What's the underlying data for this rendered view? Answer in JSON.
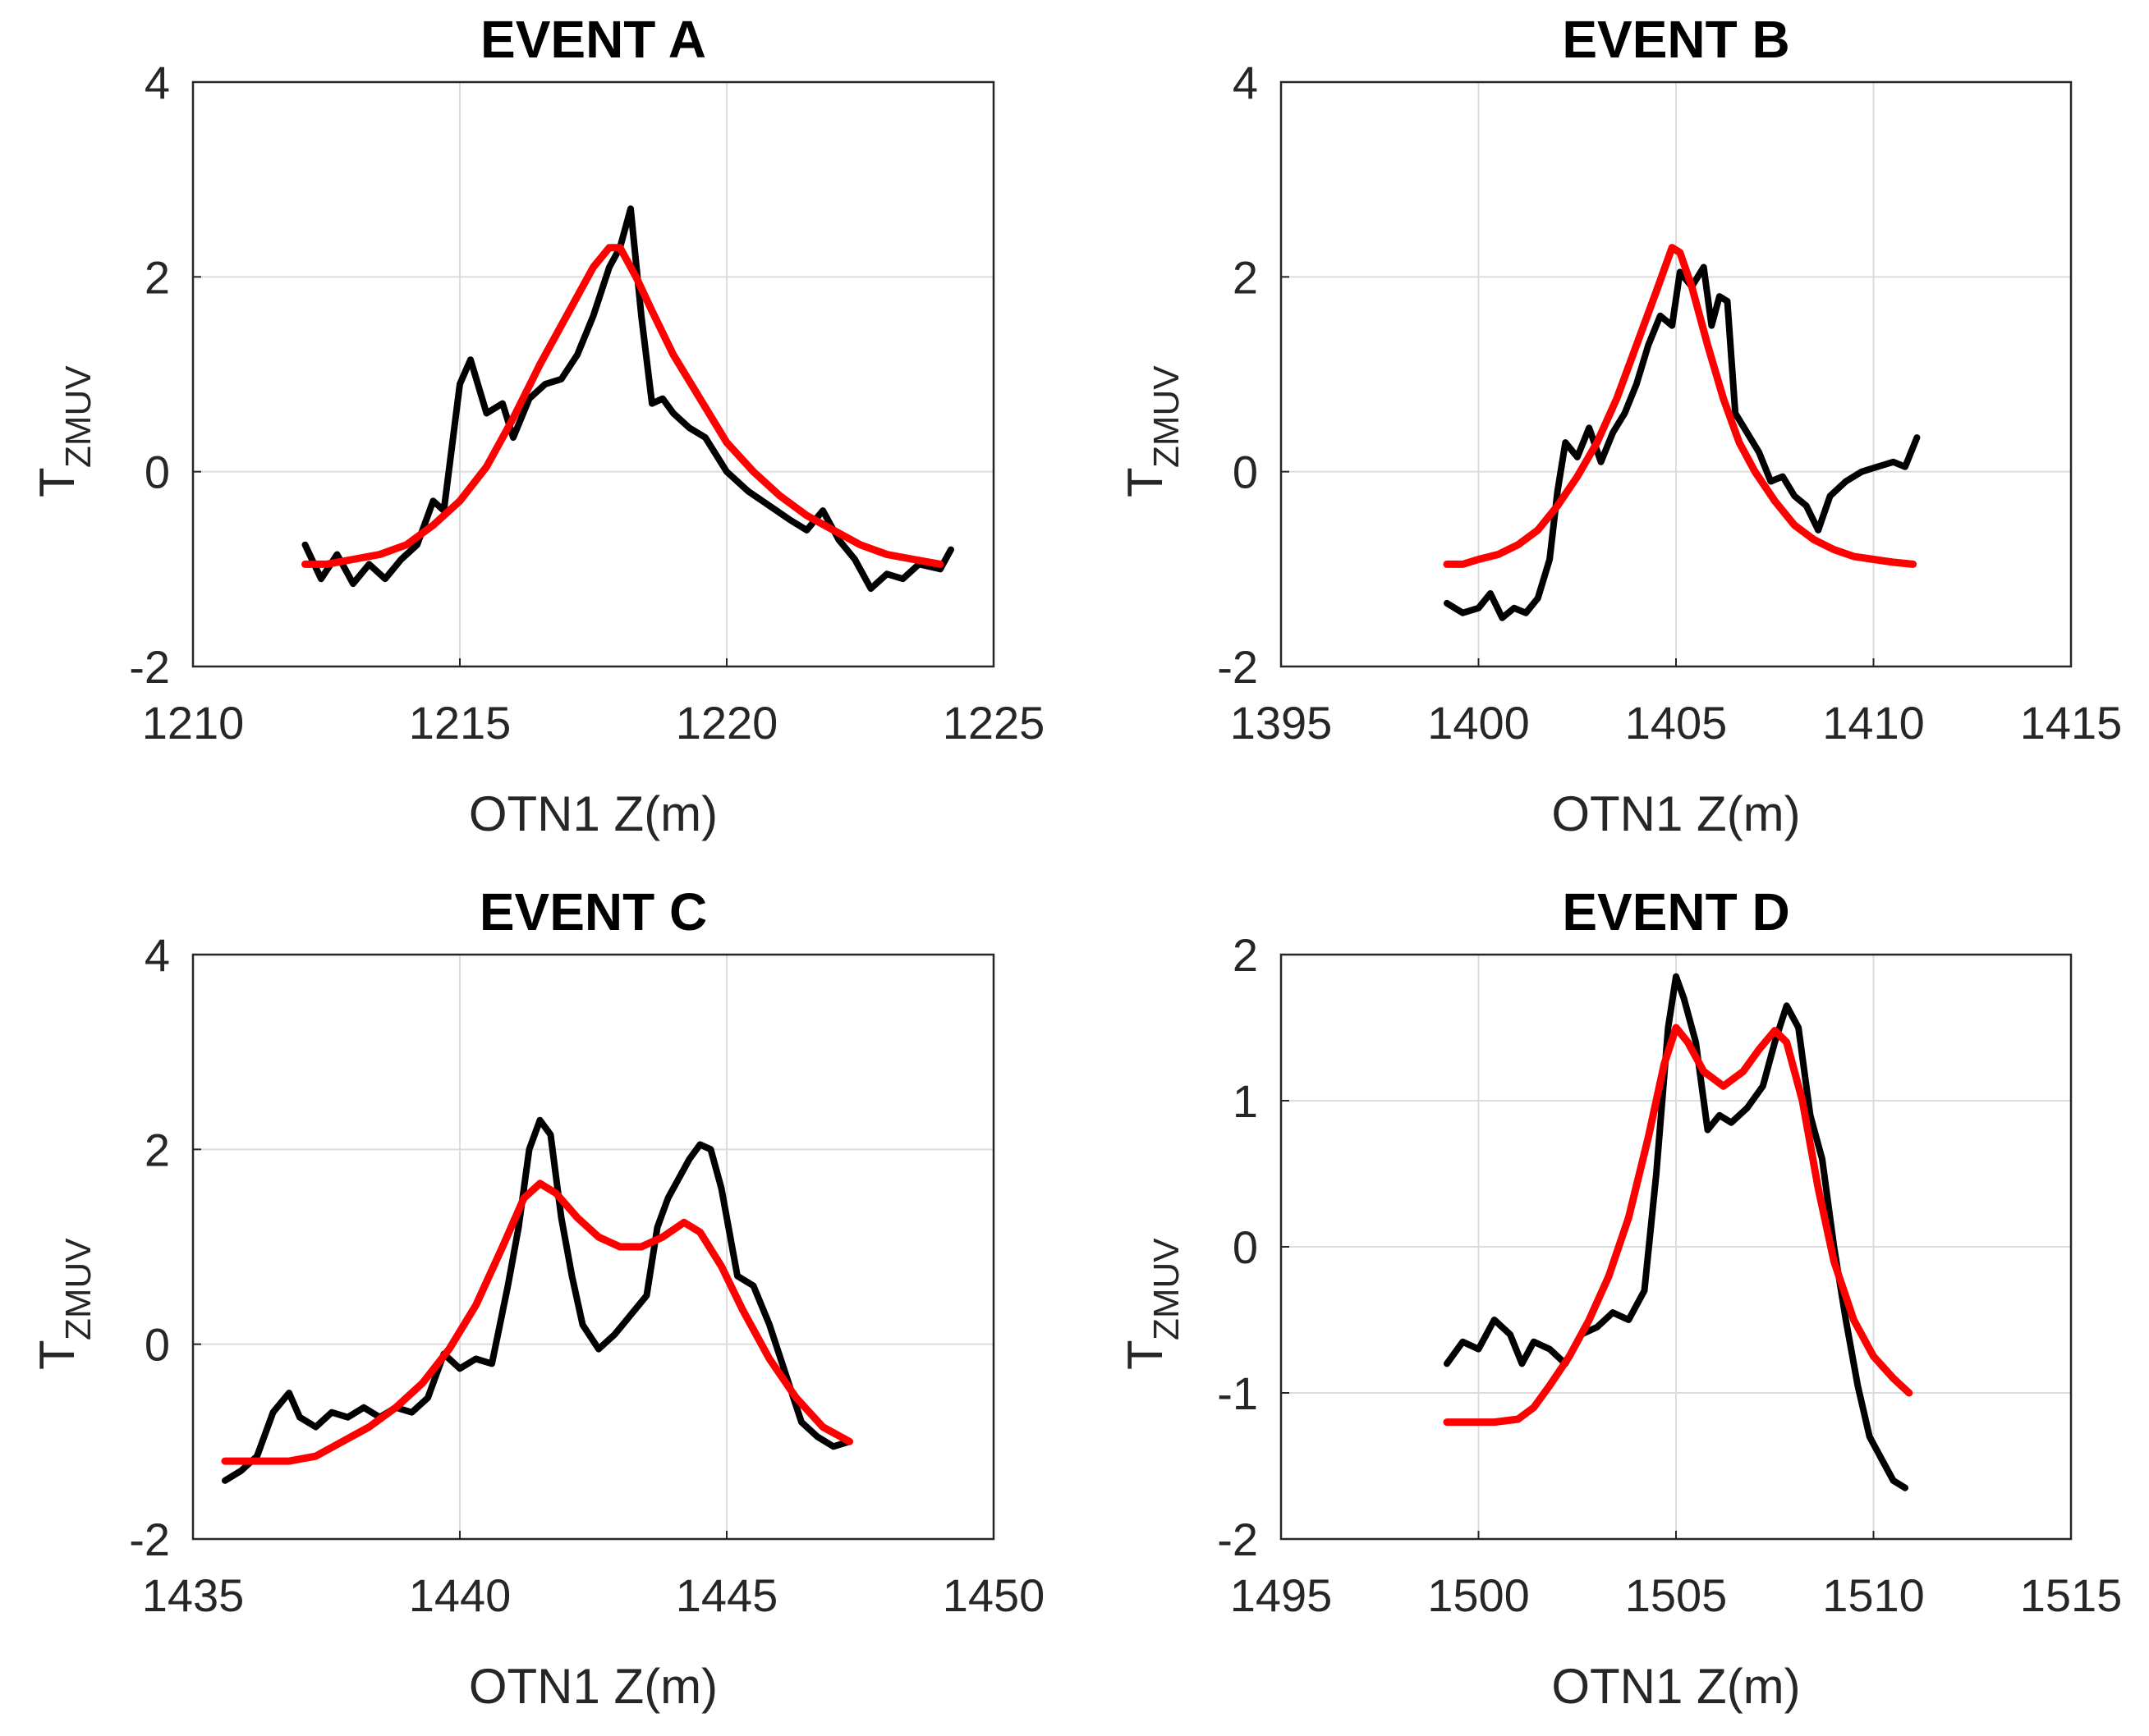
{
  "figure": {
    "ylabel_main": "T",
    "ylabel_sub": "ZMUV",
    "colors": {
      "observed": "#000000",
      "fit": "#ff0000",
      "grid": "#dcdcdc",
      "axis": "#262626"
    }
  },
  "chart_data": [
    {
      "type": "line",
      "title": "EVENT A",
      "xlabel": "OTN1 Z(m)",
      "ylabel": "T ZMUV",
      "xlim": [
        1210,
        1225
      ],
      "ylim": [
        -2,
        4
      ],
      "xticks": [
        "1210",
        "1215",
        "1220",
        "1225"
      ],
      "yticks": [
        "-2",
        "0",
        "2",
        "4"
      ],
      "grid": true,
      "series": [
        {
          "color": "#000000",
          "x": [
            1212.1,
            1212.4,
            1212.7,
            1213.0,
            1213.3,
            1213.6,
            1213.9,
            1214.2,
            1214.5,
            1214.7,
            1215.0,
            1215.2,
            1215.5,
            1215.8,
            1216.0,
            1216.3,
            1216.6,
            1216.9,
            1217.2,
            1217.5,
            1217.8,
            1218.0,
            1218.2,
            1218.4,
            1218.6,
            1218.8,
            1219.0,
            1219.3,
            1219.6,
            1220.0,
            1220.4,
            1220.8,
            1221.2,
            1221.5,
            1221.8,
            1222.1,
            1222.4,
            1222.7,
            1223.0,
            1223.3,
            1223.6,
            1224.0,
            1224.2
          ],
          "y": [
            -0.75,
            -1.1,
            -0.85,
            -1.15,
            -0.95,
            -1.1,
            -0.9,
            -0.75,
            -0.3,
            -0.4,
            0.9,
            1.15,
            0.6,
            0.7,
            0.35,
            0.75,
            0.9,
            0.95,
            1.2,
            1.6,
            2.1,
            2.3,
            2.7,
            1.6,
            0.7,
            0.75,
            0.6,
            0.45,
            0.35,
            0.0,
            -0.2,
            -0.35,
            -0.5,
            -0.6,
            -0.4,
            -0.7,
            -0.9,
            -1.2,
            -1.05,
            -1.1,
            -0.95,
            -1.0,
            -0.8
          ]
        },
        {
          "color": "#ff0000",
          "x": [
            1212.1,
            1212.5,
            1213.0,
            1213.5,
            1214.0,
            1214.5,
            1215.0,
            1215.5,
            1216.0,
            1216.5,
            1217.0,
            1217.5,
            1217.8,
            1218.0,
            1218.3,
            1218.6,
            1219.0,
            1219.5,
            1220.0,
            1220.5,
            1221.0,
            1221.5,
            1222.0,
            1222.5,
            1223.0,
            1223.5,
            1224.0
          ],
          "y": [
            -0.95,
            -0.95,
            -0.9,
            -0.85,
            -0.75,
            -0.55,
            -0.3,
            0.05,
            0.55,
            1.1,
            1.6,
            2.1,
            2.3,
            2.3,
            2.0,
            1.65,
            1.2,
            0.75,
            0.3,
            0.0,
            -0.25,
            -0.45,
            -0.6,
            -0.75,
            -0.85,
            -0.9,
            -0.95
          ]
        }
      ]
    },
    {
      "type": "line",
      "title": "EVENT B",
      "xlabel": "OTN1 Z(m)",
      "ylabel": "T ZMUV",
      "xlim": [
        1395,
        1415
      ],
      "ylim": [
        -2,
        4
      ],
      "xticks": [
        "1395",
        "1400",
        "1405",
        "1410",
        "1415"
      ],
      "yticks": [
        "-2",
        "0",
        "2",
        "4"
      ],
      "grid": true,
      "series": [
        {
          "color": "#000000",
          "x": [
            1399.2,
            1399.6,
            1400.0,
            1400.3,
            1400.6,
            1400.9,
            1401.2,
            1401.5,
            1401.8,
            1402.0,
            1402.2,
            1402.5,
            1402.8,
            1403.1,
            1403.4,
            1403.7,
            1404.0,
            1404.3,
            1404.6,
            1404.9,
            1405.1,
            1405.4,
            1405.7,
            1405.9,
            1406.1,
            1406.3,
            1406.5,
            1406.8,
            1407.1,
            1407.4,
            1407.7,
            1408.0,
            1408.3,
            1408.6,
            1408.9,
            1409.3,
            1409.7,
            1410.1,
            1410.5,
            1410.8,
            1411.1
          ],
          "y": [
            -1.35,
            -1.45,
            -1.4,
            -1.25,
            -1.5,
            -1.4,
            -1.45,
            -1.3,
            -0.9,
            -0.2,
            0.3,
            0.15,
            0.45,
            0.1,
            0.4,
            0.6,
            0.9,
            1.3,
            1.6,
            1.5,
            2.05,
            1.9,
            2.1,
            1.5,
            1.8,
            1.75,
            0.6,
            0.4,
            0.2,
            -0.1,
            -0.05,
            -0.25,
            -0.35,
            -0.6,
            -0.25,
            -0.1,
            0.0,
            0.05,
            0.1,
            0.05,
            0.35
          ]
        },
        {
          "color": "#ff0000",
          "x": [
            1399.2,
            1399.6,
            1400.0,
            1400.5,
            1401.0,
            1401.5,
            1402.0,
            1402.5,
            1403.0,
            1403.5,
            1404.0,
            1404.5,
            1404.9,
            1405.1,
            1405.4,
            1405.8,
            1406.2,
            1406.6,
            1407.0,
            1407.5,
            1408.0,
            1408.5,
            1409.0,
            1409.5,
            1410.0,
            1410.5,
            1411.0
          ],
          "y": [
            -0.95,
            -0.95,
            -0.9,
            -0.85,
            -0.75,
            -0.6,
            -0.35,
            -0.05,
            0.3,
            0.75,
            1.3,
            1.85,
            2.3,
            2.25,
            1.9,
            1.3,
            0.75,
            0.3,
            0.0,
            -0.3,
            -0.55,
            -0.7,
            -0.8,
            -0.87,
            -0.9,
            -0.93,
            -0.95
          ]
        }
      ]
    },
    {
      "type": "line",
      "title": "EVENT C",
      "xlabel": "OTN1 Z(m)",
      "ylabel": "T ZMUV",
      "xlim": [
        1435,
        1450
      ],
      "ylim": [
        -2,
        4
      ],
      "xticks": [
        "1435",
        "1440",
        "1445",
        "1450"
      ],
      "yticks": [
        "-2",
        "0",
        "2",
        "4"
      ],
      "grid": true,
      "series": [
        {
          "color": "#000000",
          "x": [
            1435.6,
            1435.9,
            1436.2,
            1436.5,
            1436.8,
            1437.0,
            1437.3,
            1437.6,
            1437.9,
            1438.2,
            1438.5,
            1438.8,
            1439.1,
            1439.4,
            1439.7,
            1440.0,
            1440.3,
            1440.6,
            1440.9,
            1441.1,
            1441.3,
            1441.5,
            1441.7,
            1441.9,
            1442.1,
            1442.3,
            1442.6,
            1442.9,
            1443.2,
            1443.5,
            1443.7,
            1443.9,
            1444.1,
            1444.3,
            1444.5,
            1444.7,
            1444.9,
            1445.2,
            1445.5,
            1445.8,
            1446.1,
            1446.4,
            1446.7,
            1447.0,
            1447.3
          ],
          "y": [
            -1.4,
            -1.3,
            -1.15,
            -0.7,
            -0.5,
            -0.75,
            -0.85,
            -0.7,
            -0.75,
            -0.65,
            -0.75,
            -0.65,
            -0.7,
            -0.55,
            -0.1,
            -0.25,
            -0.15,
            -0.2,
            0.6,
            1.2,
            2.0,
            2.3,
            2.15,
            1.3,
            0.7,
            0.2,
            -0.05,
            0.1,
            0.3,
            0.5,
            1.2,
            1.5,
            1.7,
            1.9,
            2.05,
            2.0,
            1.6,
            0.7,
            0.6,
            0.2,
            -0.3,
            -0.8,
            -0.95,
            -1.05,
            -1.0
          ]
        },
        {
          "color": "#ff0000",
          "x": [
            1435.6,
            1436.2,
            1436.8,
            1437.3,
            1437.8,
            1438.3,
            1438.8,
            1439.3,
            1439.8,
            1440.3,
            1440.8,
            1441.2,
            1441.5,
            1441.8,
            1442.2,
            1442.6,
            1443.0,
            1443.4,
            1443.8,
            1444.2,
            1444.5,
            1444.9,
            1445.3,
            1445.8,
            1446.3,
            1446.8,
            1447.3
          ],
          "y": [
            -1.2,
            -1.2,
            -1.2,
            -1.15,
            -1.0,
            -0.85,
            -0.65,
            -0.4,
            -0.05,
            0.4,
            1.0,
            1.5,
            1.65,
            1.55,
            1.3,
            1.1,
            1.0,
            1.0,
            1.1,
            1.25,
            1.15,
            0.8,
            0.35,
            -0.15,
            -0.55,
            -0.85,
            -1.0
          ]
        }
      ]
    },
    {
      "type": "line",
      "title": "EVENT D",
      "xlabel": "OTN1 Z(m)",
      "ylabel": "T ZMUV",
      "xlim": [
        1495,
        1515
      ],
      "ylim": [
        -2,
        2
      ],
      "xticks": [
        "1495",
        "1500",
        "1505",
        "1510",
        "1515"
      ],
      "yticks": [
        "-2",
        "-1",
        "0",
        "1",
        "2"
      ],
      "grid": true,
      "series": [
        {
          "color": "#000000",
          "x": [
            1499.2,
            1499.6,
            1500.0,
            1500.4,
            1500.8,
            1501.1,
            1501.4,
            1501.8,
            1502.2,
            1502.6,
            1503.0,
            1503.4,
            1503.8,
            1504.2,
            1504.5,
            1504.8,
            1505.0,
            1505.2,
            1505.5,
            1505.8,
            1506.1,
            1506.4,
            1506.8,
            1507.2,
            1507.5,
            1507.8,
            1508.1,
            1508.4,
            1508.7,
            1509.0,
            1509.3,
            1509.6,
            1509.9,
            1510.2,
            1510.5,
            1510.8
          ],
          "y": [
            -0.8,
            -0.65,
            -0.7,
            -0.5,
            -0.6,
            -0.8,
            -0.65,
            -0.7,
            -0.8,
            -0.6,
            -0.55,
            -0.45,
            -0.5,
            -0.3,
            0.5,
            1.5,
            1.85,
            1.7,
            1.4,
            0.8,
            0.9,
            0.85,
            0.95,
            1.1,
            1.4,
            1.65,
            1.5,
            0.9,
            0.6,
            0.0,
            -0.5,
            -0.95,
            -1.3,
            -1.45,
            -1.6,
            -1.65
          ]
        },
        {
          "color": "#ff0000",
          "x": [
            1499.2,
            1499.8,
            1500.4,
            1501.0,
            1501.4,
            1501.8,
            1502.3,
            1502.8,
            1503.3,
            1503.8,
            1504.3,
            1504.7,
            1505.0,
            1505.3,
            1505.7,
            1506.2,
            1506.7,
            1507.1,
            1507.5,
            1507.8,
            1508.2,
            1508.6,
            1509.0,
            1509.5,
            1510.0,
            1510.5,
            1510.9
          ],
          "y": [
            -1.2,
            -1.2,
            -1.2,
            -1.18,
            -1.1,
            -0.95,
            -0.75,
            -0.5,
            -0.2,
            0.2,
            0.75,
            1.25,
            1.5,
            1.4,
            1.2,
            1.1,
            1.2,
            1.35,
            1.48,
            1.4,
            1.0,
            0.4,
            -0.1,
            -0.5,
            -0.75,
            -0.9,
            -1.0
          ]
        }
      ]
    }
  ]
}
